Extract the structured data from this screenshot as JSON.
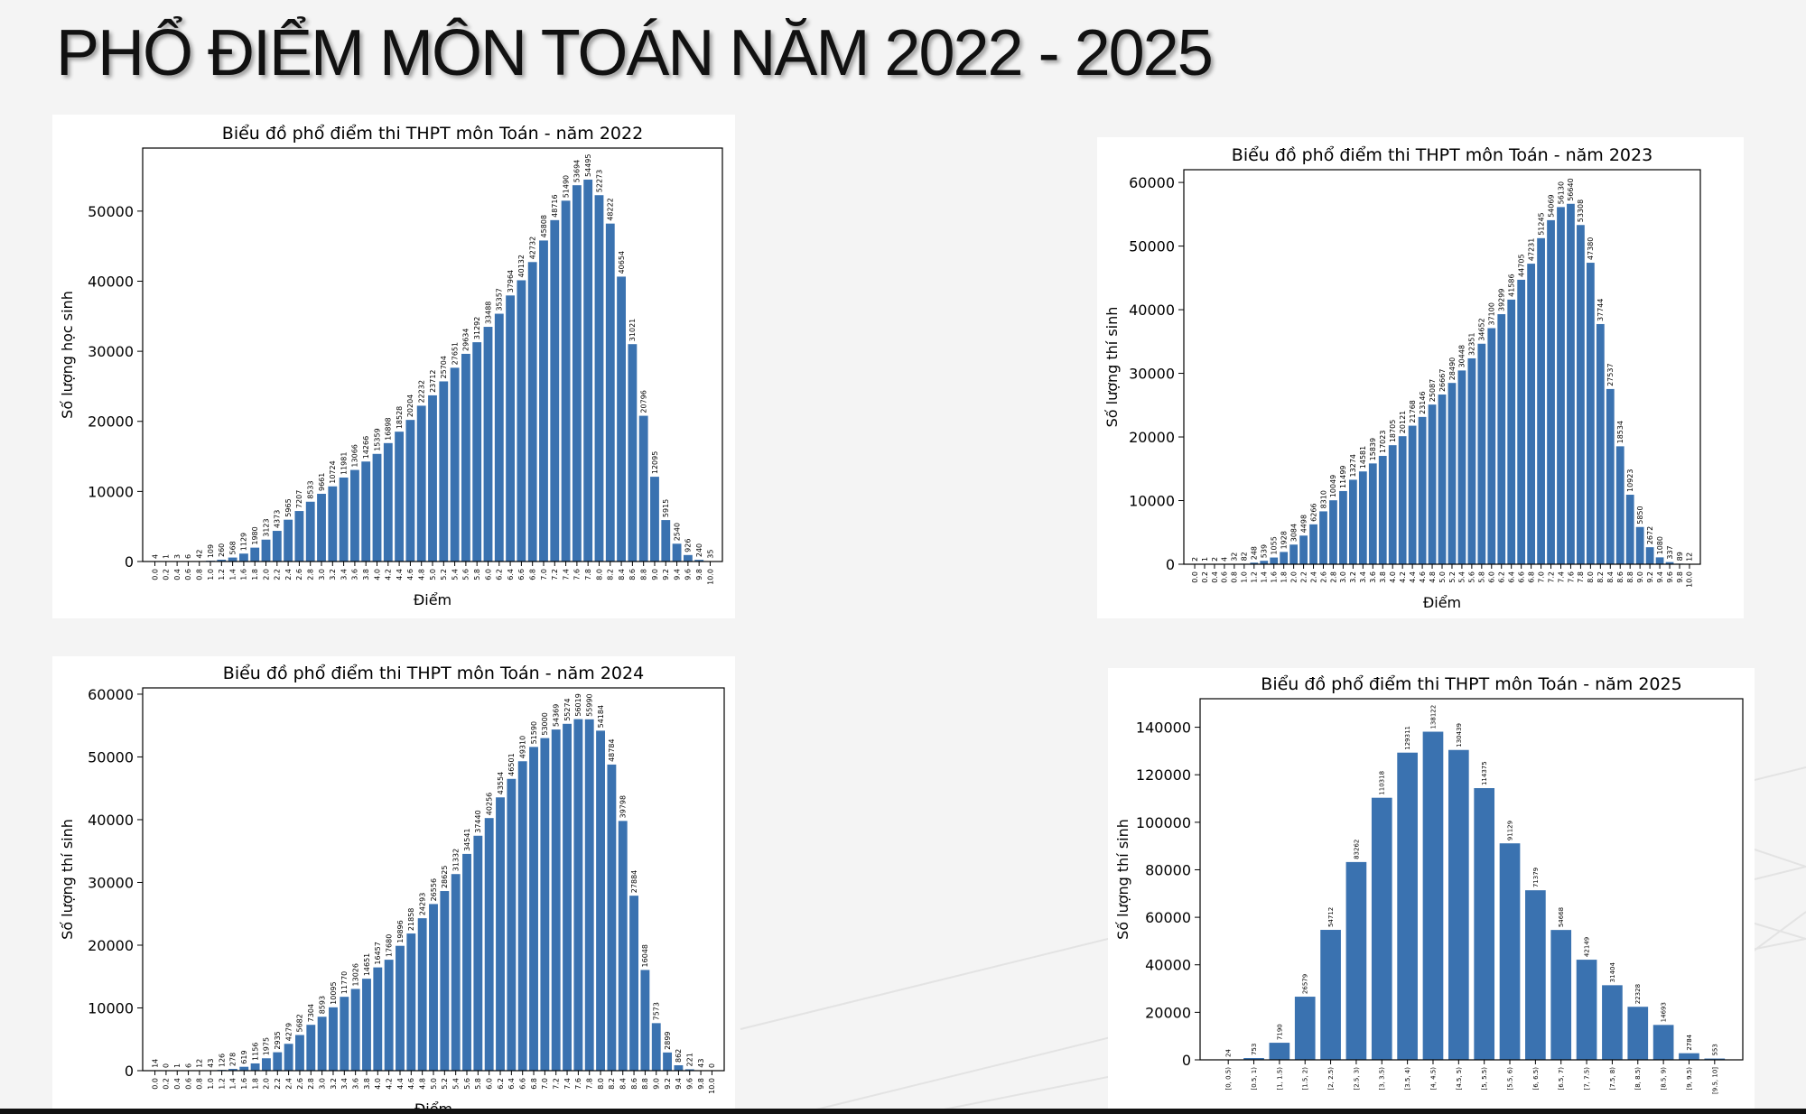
{
  "slide_title": "PHỔ ĐIỂM MÔN TOÁN NĂM 2022 - 2025",
  "colors": {
    "bar": "#3a72b0",
    "axis": "#000000",
    "background": "#f4f4f4",
    "panel": "#ffffff"
  },
  "chart_data": [
    {
      "type": "bar",
      "title": "Biểu đồ phổ điểm thi THPT môn Toán - năm 2022",
      "xlabel": "Điểm",
      "ylabel": "Số lượng học sinh",
      "ylim": [
        0,
        59000
      ],
      "yticks": [
        0,
        10000,
        20000,
        30000,
        40000,
        50000
      ],
      "categories": [
        "0.0",
        "0.2",
        "0.4",
        "0.6",
        "0.8",
        "1.0",
        "1.2",
        "1.4",
        "1.6",
        "1.8",
        "2.0",
        "2.2",
        "2.4",
        "2.6",
        "2.8",
        "3.0",
        "3.2",
        "3.4",
        "3.6",
        "3.8",
        "4.0",
        "4.2",
        "4.4",
        "4.6",
        "4.8",
        "5.0",
        "5.2",
        "5.4",
        "5.6",
        "5.8",
        "6.0",
        "6.2",
        "6.4",
        "6.6",
        "6.8",
        "7.0",
        "7.2",
        "7.4",
        "7.6",
        "7.8",
        "8.0",
        "8.2",
        "8.4",
        "8.6",
        "8.8",
        "9.0",
        "9.2",
        "9.4",
        "9.6",
        "9.8",
        "10.0"
      ],
      "values": [
        4,
        1,
        3,
        6,
        42,
        109,
        260,
        568,
        1129,
        1980,
        3123,
        4373,
        5965,
        7207,
        8533,
        9661,
        10724,
        11981,
        13066,
        14266,
        15359,
        16898,
        18528,
        20204,
        22232,
        23712,
        25704,
        27651,
        29634,
        31292,
        33488,
        35357,
        37964,
        40132,
        42732,
        45808,
        48716,
        51490,
        53694,
        54495,
        52273,
        48222,
        40654,
        31021,
        20796,
        12095,
        5915,
        2540,
        926,
        240,
        35
      ]
    },
    {
      "type": "bar",
      "title": "Biểu đồ phổ điểm thi THPT môn Toán - năm 2023",
      "xlabel": "Điểm",
      "ylabel": "Số lượng thí sinh",
      "ylim": [
        0,
        62000
      ],
      "yticks": [
        0,
        10000,
        20000,
        30000,
        40000,
        50000,
        60000
      ],
      "categories": [
        "0.0",
        "0.2",
        "0.4",
        "0.6",
        "0.8",
        "1.0",
        "1.2",
        "1.4",
        "1.6",
        "1.8",
        "2.0",
        "2.2",
        "2.4",
        "2.6",
        "2.8",
        "3.0",
        "3.2",
        "3.4",
        "3.6",
        "3.8",
        "4.0",
        "4.2",
        "4.4",
        "4.6",
        "4.8",
        "5.0",
        "5.2",
        "5.4",
        "5.6",
        "5.8",
        "6.0",
        "6.2",
        "6.4",
        "6.6",
        "6.8",
        "7.0",
        "7.2",
        "7.4",
        "7.6",
        "7.8",
        "8.0",
        "8.2",
        "8.4",
        "8.6",
        "8.8",
        "9.0",
        "9.2",
        "9.4",
        "9.6",
        "9.8",
        "10.0"
      ],
      "values": [
        2,
        1,
        2,
        4,
        32,
        82,
        248,
        539,
        1055,
        1928,
        3084,
        4498,
        6266,
        8310,
        10049,
        11499,
        13274,
        14581,
        15839,
        17023,
        18705,
        20121,
        21768,
        23146,
        25087,
        26667,
        28490,
        30448,
        32351,
        34652,
        37100,
        39299,
        41586,
        44705,
        47231,
        51245,
        54069,
        56130,
        56640,
        53308,
        47380,
        37744,
        27537,
        18534,
        10923,
        5850,
        2672,
        1080,
        337,
        89,
        12
      ]
    },
    {
      "type": "bar",
      "title": "Biểu đồ phổ điểm thi THPT môn Toán - năm 2024",
      "xlabel": "Điểm",
      "ylabel": "Số lượng thí sinh",
      "ylim": [
        0,
        61000
      ],
      "yticks": [
        0,
        10000,
        20000,
        30000,
        40000,
        50000,
        60000
      ],
      "categories": [
        "0.0",
        "0.2",
        "0.4",
        "0.6",
        "0.8",
        "1.0",
        "1.2",
        "1.4",
        "1.6",
        "1.8",
        "2.0",
        "2.2",
        "2.4",
        "2.6",
        "2.8",
        "3.0",
        "3.2",
        "3.4",
        "3.6",
        "3.8",
        "4.0",
        "4.2",
        "4.4",
        "4.6",
        "4.8",
        "5.0",
        "5.2",
        "5.4",
        "5.6",
        "5.8",
        "6.0",
        "6.2",
        "6.4",
        "6.6",
        "6.8",
        "7.0",
        "7.2",
        "7.4",
        "7.6",
        "7.8",
        "8.0",
        "8.2",
        "8.4",
        "8.6",
        "8.8",
        "9.0",
        "9.2",
        "9.4",
        "9.6",
        "9.8",
        "10.0"
      ],
      "values": [
        14,
        0,
        1,
        6,
        12,
        43,
        126,
        278,
        619,
        1156,
        1975,
        2935,
        4279,
        5682,
        7304,
        8593,
        10095,
        11770,
        13026,
        14651,
        16457,
        17680,
        19896,
        21858,
        24293,
        26556,
        28625,
        31332,
        34541,
        37440,
        40256,
        43554,
        46501,
        49310,
        51590,
        53000,
        54369,
        55274,
        56019,
        55990,
        54184,
        48784,
        39798,
        27884,
        16048,
        7573,
        2899,
        862,
        221,
        43,
        0
      ]
    },
    {
      "type": "bar",
      "title": "Biểu đồ phổ điểm thi THPT môn Toán - năm 2025",
      "xlabel": "Điểm",
      "ylabel": "Số lượng thí sinh",
      "ylim": [
        0,
        152000
      ],
      "yticks": [
        0,
        20000,
        40000,
        60000,
        80000,
        100000,
        120000,
        140000
      ],
      "categories": [
        "[0, 0.5)",
        "[0.5, 1)",
        "[1, 1.5)",
        "[1.5, 2)",
        "[2, 2.5)",
        "[2.5, 3)",
        "[3, 3.5)",
        "[3.5, 4)",
        "[4, 4.5)",
        "[4.5, 5)",
        "[5, 5.5)",
        "[5.5, 6)",
        "[6, 6.5)",
        "[6.5, 7)",
        "[7, 7.5)",
        "[7.5, 8)",
        "[8, 8.5)",
        "[8.5, 9)",
        "[9, 9.5)",
        "[9.5, 10]"
      ],
      "values": [
        24,
        753,
        7190,
        26579,
        54712,
        83262,
        110318,
        129311,
        138122,
        130439,
        114375,
        91129,
        71379,
        54668,
        42149,
        31404,
        22328,
        14693,
        2784,
        553
      ]
    }
  ]
}
